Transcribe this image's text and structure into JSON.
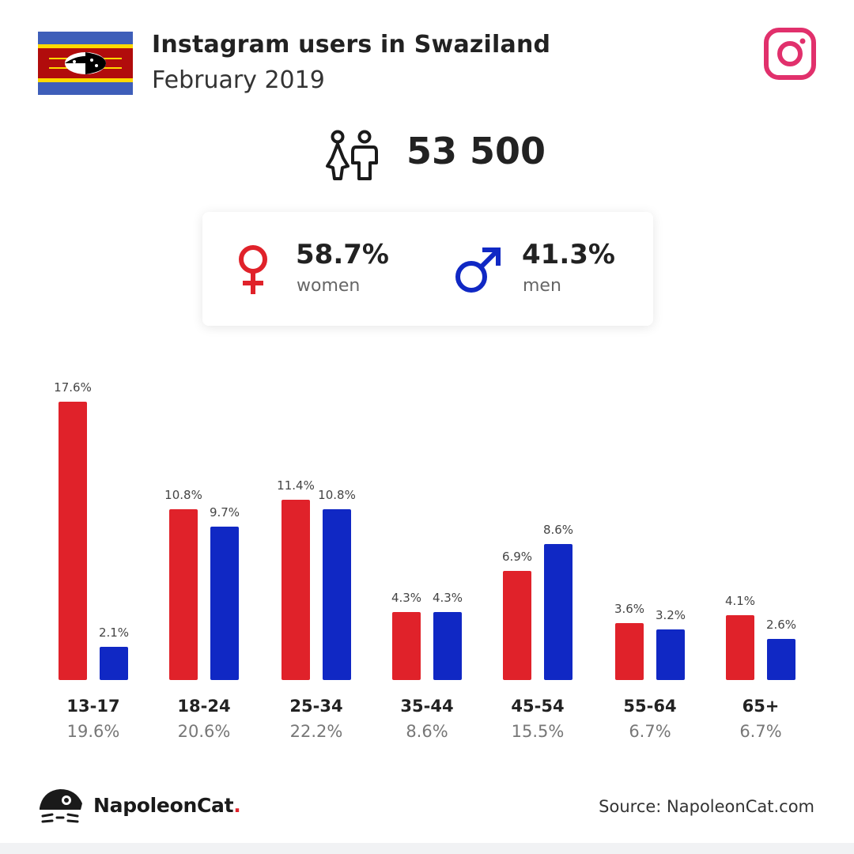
{
  "header": {
    "title": "Instagram users in Swaziland",
    "subtitle": "February 2019"
  },
  "total": {
    "value": "53 500",
    "icon": "people-icon"
  },
  "gender": {
    "women": {
      "value": "58.7%",
      "label": "women",
      "color": "#e0222a"
    },
    "men": {
      "value": "41.3%",
      "label": "men",
      "color": "#1028c4"
    }
  },
  "chart_data": {
    "type": "bar",
    "categories": [
      "13-17",
      "18-24",
      "25-34",
      "35-44",
      "45-54",
      "55-64",
      "65+"
    ],
    "category_totals": [
      "19.6%",
      "20.6%",
      "22.2%",
      "8.6%",
      "15.5%",
      "6.7%",
      "6.7%"
    ],
    "series": [
      {
        "name": "women",
        "color": "#e0222a",
        "values": [
          17.6,
          10.8,
          11.4,
          4.3,
          6.9,
          3.6,
          4.1
        ]
      },
      {
        "name": "men",
        "color": "#1028c4",
        "values": [
          2.1,
          9.7,
          10.8,
          4.3,
          8.6,
          3.2,
          2.6
        ]
      }
    ],
    "ylim": [
      0,
      17.6
    ],
    "grid": false
  },
  "footer": {
    "brand_name": "NapoleonCat",
    "brand_dot": ".",
    "source": "Source: NapoleonCat.com"
  },
  "colors": {
    "instagram": "#e1306c",
    "women": "#e0222a",
    "men": "#1028c4"
  }
}
